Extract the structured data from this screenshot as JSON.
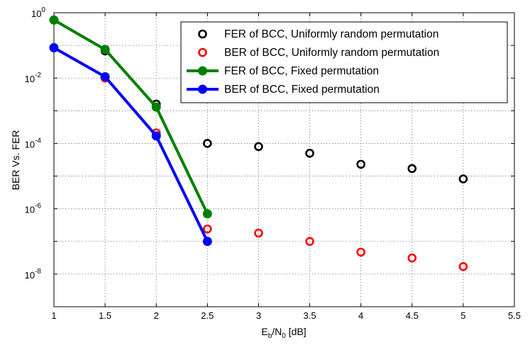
{
  "chart_data": {
    "type": "line",
    "xlabel": {
      "main": "E",
      "sub1": "b",
      "mid": "/N",
      "sub2": "0",
      "tail": " [dB]"
    },
    "ylabel": "BER Vs. FER",
    "xlim": [
      1,
      5.5
    ],
    "ylim_log10": [
      -9,
      0
    ],
    "yscale": "log",
    "grid": true,
    "legend_position": "top-right",
    "x_ticks": [
      "1",
      "1.5",
      "2",
      "2.5",
      "3",
      "3.5",
      "4",
      "4.5",
      "5",
      "5.5"
    ],
    "x_tick_values": [
      1,
      1.5,
      2,
      2.5,
      3,
      3.5,
      4,
      4.5,
      5,
      5.5
    ],
    "y_ticks": [
      {
        "base": "10",
        "exp": "0",
        "log": 0
      },
      {
        "base": "10",
        "exp": "-2",
        "log": -2
      },
      {
        "base": "10",
        "exp": "-4",
        "log": -4
      },
      {
        "base": "10",
        "exp": "-6",
        "log": -6
      },
      {
        "base": "10",
        "exp": "-8",
        "log": -8
      }
    ],
    "series": [
      {
        "name": "FER of BCC, Uniformly random  permutation",
        "style": "markers",
        "color": "#000000",
        "x": [
          1,
          1.5,
          2,
          2.5,
          3,
          3.5,
          4,
          4.5,
          5
        ],
        "y": [
          0.6,
          0.068,
          0.0016,
          0.0001,
          8e-05,
          5e-05,
          2.3e-05,
          1.7e-05,
          8.2e-06
        ]
      },
      {
        "name": "BER of BCC, Uniformly random  permutation",
        "style": "markers",
        "color": "#ff0000",
        "x": [
          1,
          1.5,
          2,
          2.5,
          3,
          3.5,
          4,
          4.5,
          5
        ],
        "y": [
          0.085,
          0.01,
          0.00021,
          2.4e-07,
          1.8e-07,
          1e-07,
          4.7e-08,
          3.1e-08,
          1.7e-08
        ]
      },
      {
        "name": "FER of BCC, Fixed permutation",
        "style": "line-markers",
        "color": "#008000",
        "x": [
          1,
          1.5,
          2,
          2.5
        ],
        "y": [
          0.6,
          0.075,
          0.0013,
          7e-07
        ]
      },
      {
        "name": "BER of BCC, Fixed permutation",
        "style": "line-markers",
        "color": "#0000ff",
        "x": [
          1,
          1.5,
          2,
          2.5
        ],
        "y": [
          0.085,
          0.011,
          0.00017,
          1e-07
        ]
      }
    ]
  }
}
